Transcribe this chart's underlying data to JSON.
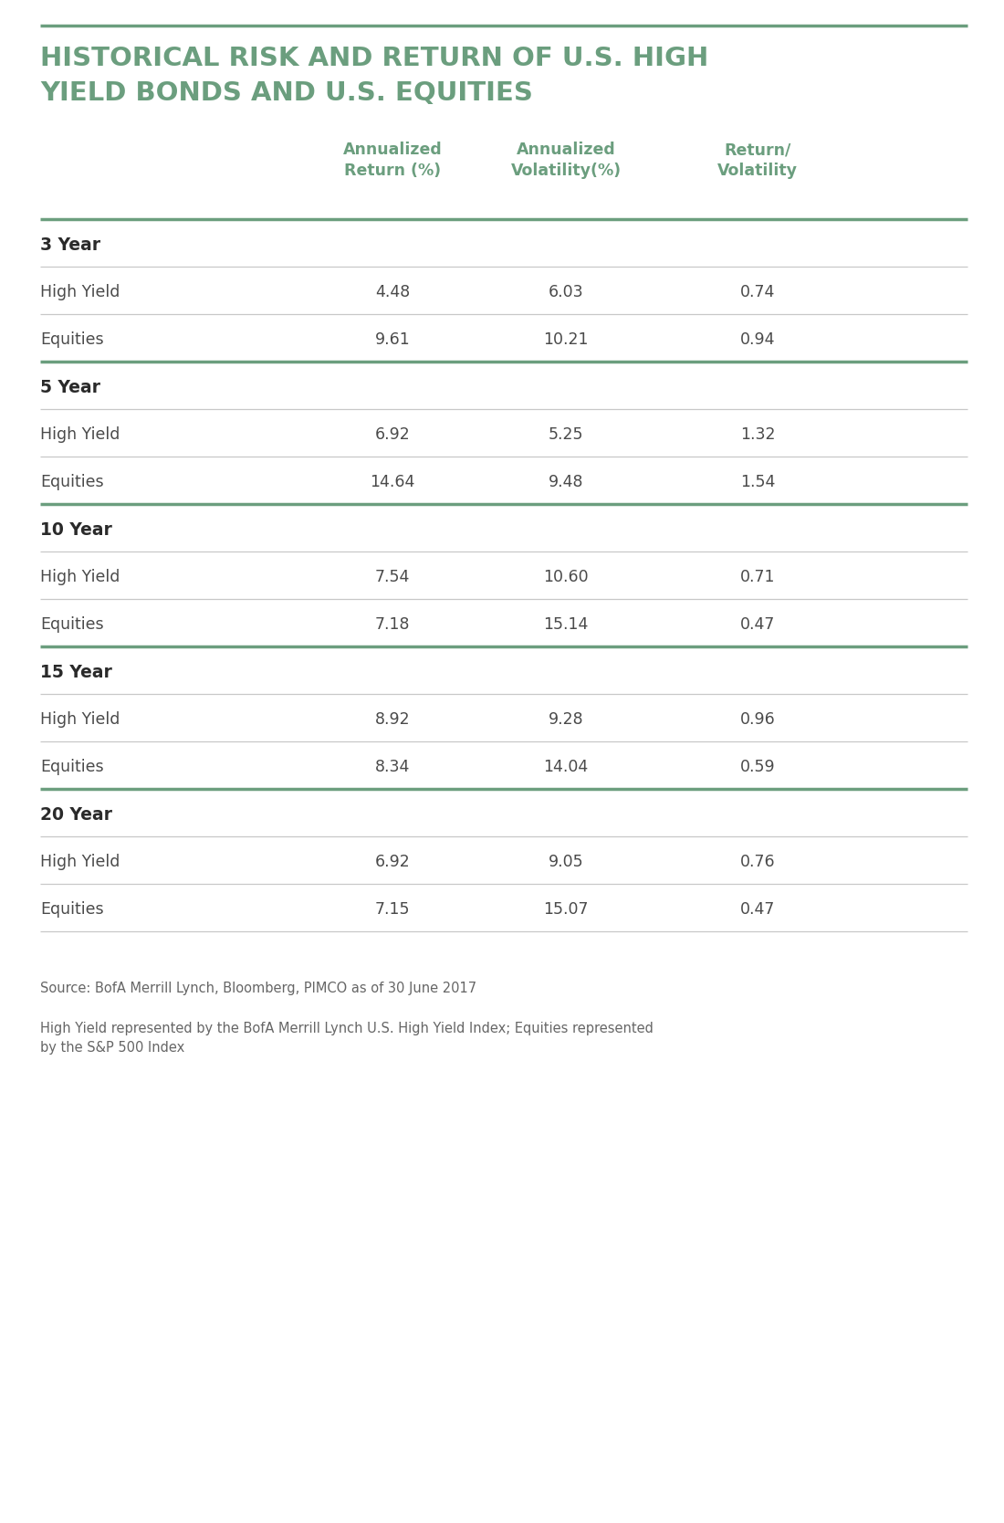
{
  "title_line1": "HISTORICAL RISK AND RETURN OF U.S. HIGH",
  "title_line2": "YIELD BONDS AND U.S. EQUITIES",
  "title_color": "#6b9e7e",
  "col_headers": [
    "Annualized\nReturn (%)",
    "Annualized\nVolatility(%)",
    "Return/\nVolatility"
  ],
  "col_header_color": "#6b9e7e",
  "sections": [
    {
      "label": "3 Year",
      "rows": [
        {
          "name": "High Yield",
          "values": [
            "4.48",
            "6.03",
            "0.74"
          ]
        },
        {
          "name": "Equities",
          "values": [
            "9.61",
            "10.21",
            "0.94"
          ]
        }
      ]
    },
    {
      "label": "5 Year",
      "rows": [
        {
          "name": "High Yield",
          "values": [
            "6.92",
            "5.25",
            "1.32"
          ]
        },
        {
          "name": "Equities",
          "values": [
            "14.64",
            "9.48",
            "1.54"
          ]
        }
      ]
    },
    {
      "label": "10 Year",
      "rows": [
        {
          "name": "High Yield",
          "values": [
            "7.54",
            "10.60",
            "0.71"
          ]
        },
        {
          "name": "Equities",
          "values": [
            "7.18",
            "15.14",
            "0.47"
          ]
        }
      ]
    },
    {
      "label": "15 Year",
      "rows": [
        {
          "name": "High Yield",
          "values": [
            "8.92",
            "9.28",
            "0.96"
          ]
        },
        {
          "name": "Equities",
          "values": [
            "8.34",
            "14.04",
            "0.59"
          ]
        }
      ]
    },
    {
      "label": "20 Year",
      "rows": [
        {
          "name": "High Yield",
          "values": [
            "6.92",
            "9.05",
            "0.76"
          ]
        },
        {
          "name": "Equities",
          "values": [
            "7.15",
            "15.07",
            "0.47"
          ]
        }
      ]
    }
  ],
  "source_text": "Source: BofA Merrill Lynch, Bloomberg, PIMCO as of 30 June 2017",
  "footnote_text": "High Yield represented by the BofA Merrill Lynch U.S. High Yield Index; Equities represented\nby the S&P 500 Index",
  "bg_color": "#ffffff",
  "text_color": "#4a4a4a",
  "section_label_color": "#2a2a2a",
  "thick_line_color": "#6b9e7e",
  "thin_line_color": "#c8c8c8",
  "footnote_color": "#666666"
}
